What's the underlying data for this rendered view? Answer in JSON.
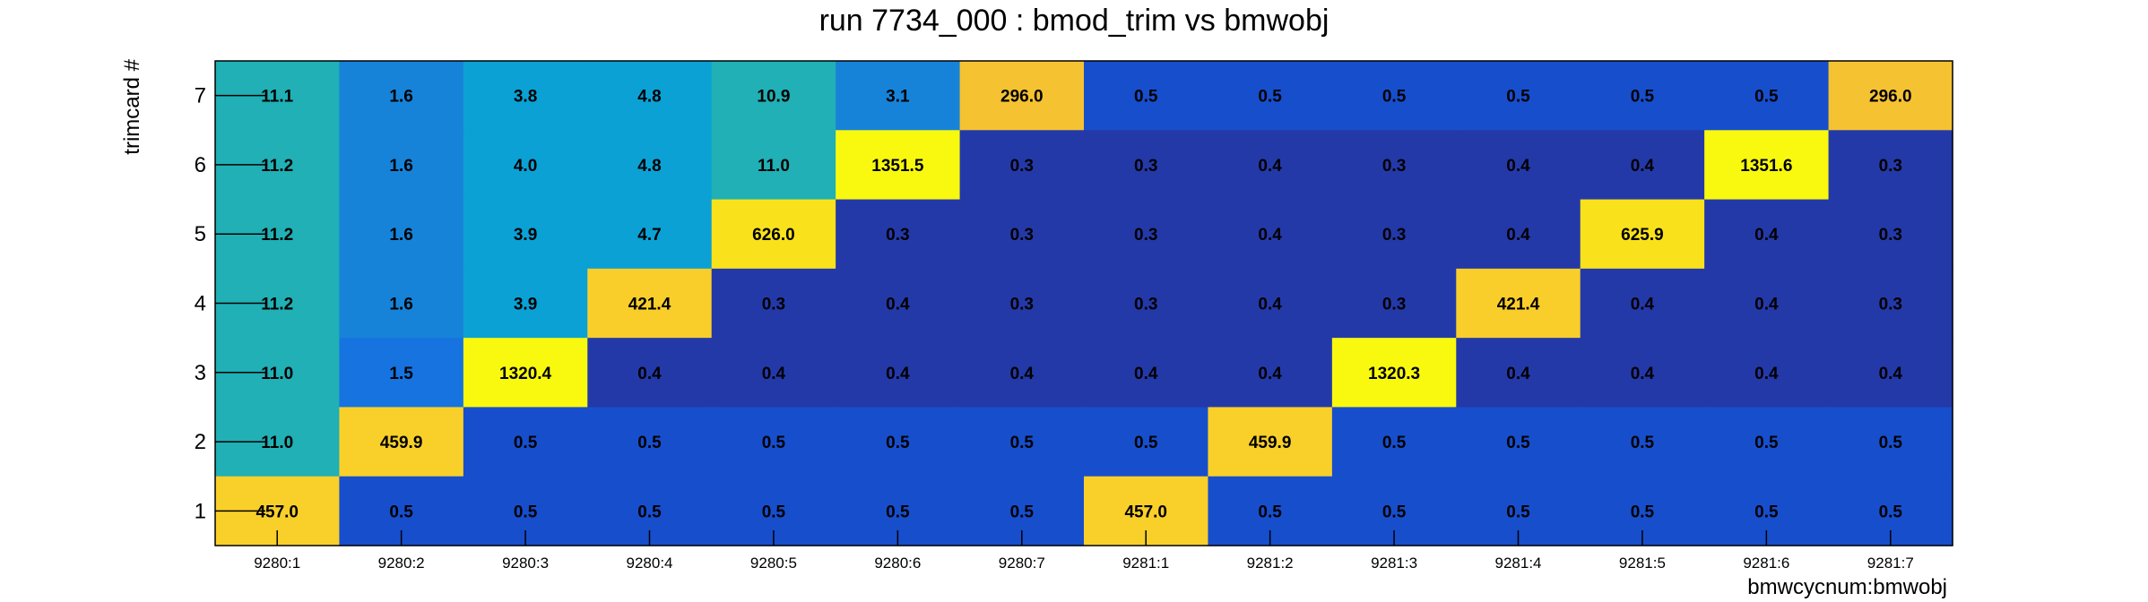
{
  "chart_data": {
    "type": "heatmap",
    "title": "run 7734_000 : bmod_trim vs bmwobj",
    "xlabel": "bmwcycnum:bmwobj",
    "ylabel": "trimcard #",
    "x_categories": [
      "9280:1",
      "9280:2",
      "9280:3",
      "9280:4",
      "9280:5",
      "9280:6",
      "9280:7",
      "9281:1",
      "9281:2",
      "9281:3",
      "9281:4",
      "9281:5",
      "9281:6",
      "9281:7"
    ],
    "y_categories": [
      "1",
      "2",
      "3",
      "4",
      "5",
      "6",
      "7"
    ],
    "values_top_to_bottom": [
      [
        "11.1",
        "1.6",
        "3.8",
        "4.8",
        "10.9",
        "3.1",
        "296.0",
        "0.5",
        "0.5",
        "0.5",
        "0.5",
        "0.5",
        "0.5",
        "296.0"
      ],
      [
        "11.2",
        "1.6",
        "4.0",
        "4.8",
        "11.0",
        "1351.5",
        "0.3",
        "0.3",
        "0.4",
        "0.3",
        "0.4",
        "0.4",
        "1351.6",
        "0.3"
      ],
      [
        "11.2",
        "1.6",
        "3.9",
        "4.7",
        "626.0",
        "0.3",
        "0.3",
        "0.3",
        "0.4",
        "0.3",
        "0.4",
        "625.9",
        "0.4",
        "0.3"
      ],
      [
        "11.2",
        "1.6",
        "3.9",
        "421.4",
        "0.3",
        "0.4",
        "0.3",
        "0.3",
        "0.4",
        "0.3",
        "421.4",
        "0.4",
        "0.4",
        "0.3"
      ],
      [
        "11.0",
        "1.5",
        "1320.4",
        "0.4",
        "0.4",
        "0.4",
        "0.4",
        "0.4",
        "0.4",
        "1320.3",
        "0.4",
        "0.4",
        "0.4",
        "0.4"
      ],
      [
        "11.0",
        "459.9",
        "0.5",
        "0.5",
        "0.5",
        "0.5",
        "0.5",
        "0.5",
        "459.9",
        "0.5",
        "0.5",
        "0.5",
        "0.5",
        "0.5"
      ],
      [
        "457.0",
        "0.5",
        "0.5",
        "0.5",
        "0.5",
        "0.5",
        "0.5",
        "457.0",
        "0.5",
        "0.5",
        "0.5",
        "0.5",
        "0.5",
        "0.5"
      ]
    ],
    "colors_top_to_bottom": [
      [
        "#20B0B5",
        "#1683D9",
        "#0BA1D5",
        "#0BA1D5",
        "#20B0B5",
        "#1683D9",
        "#F5C232",
        "#174ECC",
        "#174ECC",
        "#174ECC",
        "#174ECC",
        "#174ECC",
        "#174ECC",
        "#F5C232"
      ],
      [
        "#20B0B5",
        "#1683D9",
        "#0BA1D5",
        "#0BA1D5",
        "#20B0B5",
        "#F9F90F",
        "#2439A8",
        "#2439A8",
        "#2439A8",
        "#2439A8",
        "#2439A8",
        "#2439A8",
        "#F9F90F",
        "#2439A8"
      ],
      [
        "#20B0B5",
        "#1683D9",
        "#0BA1D5",
        "#0BA1D5",
        "#F9E21B",
        "#2439A8",
        "#2439A8",
        "#2439A8",
        "#2439A8",
        "#2439A8",
        "#2439A8",
        "#F9E21B",
        "#2439A8",
        "#2439A8"
      ],
      [
        "#20B0B5",
        "#1683D9",
        "#0BA1D5",
        "#F9CE2B",
        "#2439A8",
        "#2439A8",
        "#2439A8",
        "#2439A8",
        "#2439A8",
        "#2439A8",
        "#F9CE2B",
        "#2439A8",
        "#2439A8",
        "#2439A8"
      ],
      [
        "#20B0B5",
        "#1673E0",
        "#F9F90F",
        "#2439A8",
        "#2439A8",
        "#2439A8",
        "#2439A8",
        "#2439A8",
        "#2439A8",
        "#F9F90F",
        "#2439A8",
        "#2439A8",
        "#2439A8",
        "#2439A8"
      ],
      [
        "#20B0B5",
        "#F9D02A",
        "#174ECC",
        "#174ECC",
        "#174ECC",
        "#174ECC",
        "#174ECC",
        "#174ECC",
        "#F9D02A",
        "#174ECC",
        "#174ECC",
        "#174ECC",
        "#174ECC",
        "#174ECC"
      ],
      [
        "#F9D02A",
        "#174ECC",
        "#174ECC",
        "#174ECC",
        "#174ECC",
        "#174ECC",
        "#174ECC",
        "#F9D02A",
        "#174ECC",
        "#174ECC",
        "#174ECC",
        "#174ECC",
        "#174ECC",
        "#174ECC"
      ]
    ]
  }
}
